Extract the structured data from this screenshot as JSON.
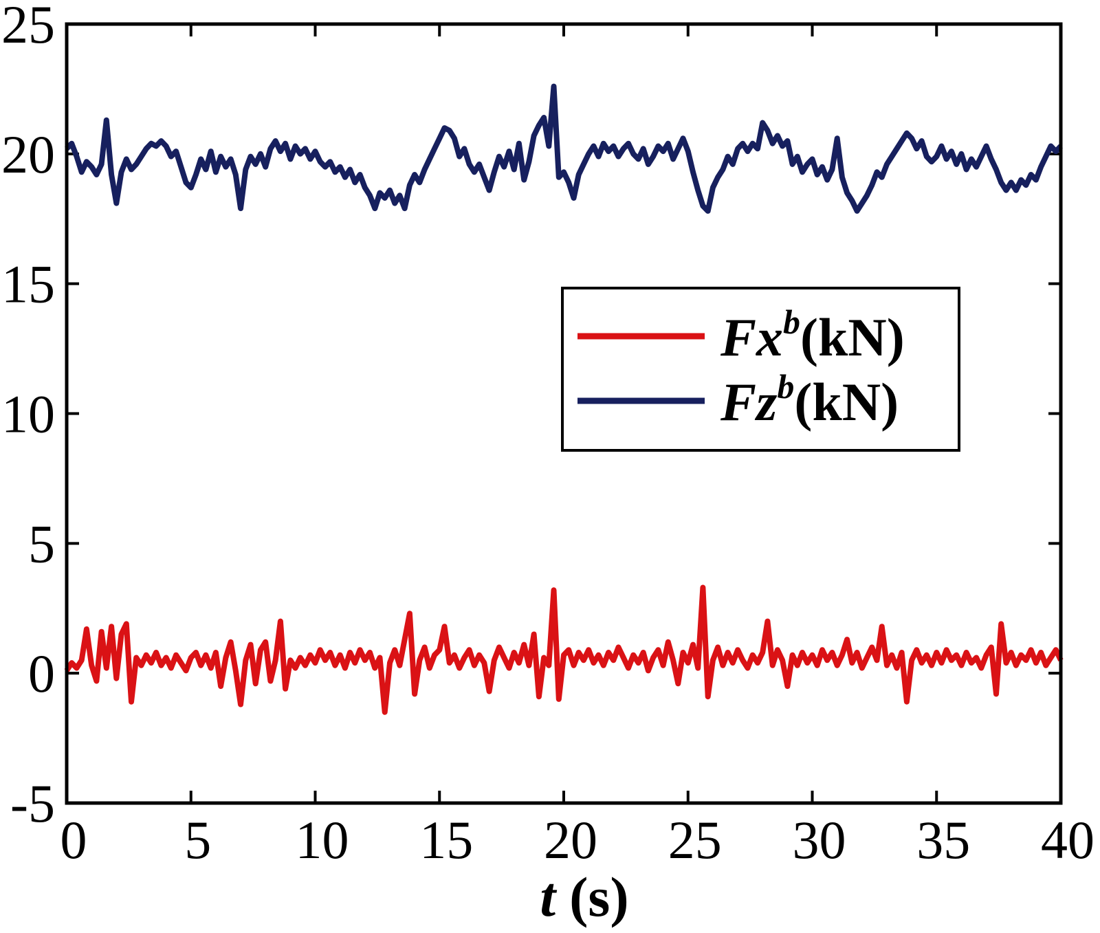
{
  "figure": {
    "background": "#ffffff",
    "axis_color": "#000000",
    "text_color": "#000000"
  },
  "chart_data": {
    "type": "line",
    "title": "",
    "xlabel": {
      "symbol": "t",
      "unit": "(s)"
    },
    "ylabel": "",
    "axes": {
      "xlim": [
        0,
        40
      ],
      "ylim": [
        -5,
        25
      ],
      "xticks": [
        0,
        5,
        10,
        15,
        20,
        25,
        30,
        35,
        40
      ],
      "yticks": [
        -5,
        0,
        5,
        10,
        15,
        20,
        25
      ],
      "tick_direction": "in",
      "box": true,
      "grid": false
    },
    "x_start": 0,
    "x_step": 0.2,
    "legend": {
      "position": "center-right",
      "entries": [
        "Fxᵇ(kN)",
        "Fzᵇ(kN)"
      ]
    },
    "series": [
      {
        "name": "Fx",
        "sup": "b",
        "unit": "(kN)",
        "color": "#da1215",
        "values": [
          0.1,
          0.4,
          0.2,
          0.5,
          1.7,
          0.3,
          -0.3,
          1.6,
          0.2,
          1.8,
          -0.2,
          1.5,
          1.9,
          -1.1,
          0.6,
          0.3,
          0.7,
          0.4,
          0.8,
          0.3,
          0.6,
          0.2,
          0.7,
          0.4,
          0.1,
          0.6,
          0.8,
          0.3,
          0.7,
          0.2,
          0.8,
          -0.5,
          0.6,
          1.2,
          0.1,
          -1.2,
          0.5,
          1.1,
          -0.4,
          0.9,
          1.2,
          -0.3,
          0.5,
          2.0,
          -0.6,
          0.5,
          0.2,
          0.6,
          0.3,
          0.7,
          0.4,
          0.9,
          0.5,
          0.8,
          0.3,
          0.7,
          0.2,
          0.8,
          0.4,
          0.9,
          0.5,
          0.8,
          0.2,
          0.6,
          -1.5,
          0.4,
          0.9,
          0.3,
          1.3,
          2.3,
          -0.8,
          0.5,
          1.0,
          0.2,
          0.7,
          0.9,
          1.8,
          0.4,
          0.7,
          0.2,
          0.6,
          0.9,
          0.3,
          0.7,
          0.4,
          -0.7,
          0.5,
          1.0,
          0.6,
          0.2,
          0.8,
          0.4,
          1.1,
          0.3,
          1.5,
          -0.9,
          0.6,
          0.3,
          3.2,
          -1.0,
          0.7,
          0.9,
          0.3,
          0.8,
          0.5,
          0.9,
          0.4,
          0.7,
          0.3,
          0.8,
          0.5,
          1.0,
          0.6,
          0.2,
          0.7,
          0.4,
          0.8,
          0.1,
          0.6,
          0.9,
          0.3,
          1.2,
          0.5,
          -0.4,
          0.8,
          0.4,
          1.1,
          0.2,
          3.3,
          -0.9,
          0.5,
          1.0,
          0.3,
          0.8,
          0.4,
          0.9,
          0.5,
          0.2,
          0.7,
          0.4,
          0.8,
          2.0,
          0.3,
          0.9,
          0.5,
          -0.5,
          0.7,
          0.3,
          0.8,
          0.4,
          0.7,
          0.3,
          0.9,
          0.5,
          0.8,
          0.3,
          0.7,
          1.3,
          0.4,
          0.8,
          0.2,
          0.6,
          1.0,
          0.5,
          1.8,
          0.3,
          0.7,
          0.2,
          0.8,
          -1.1,
          0.5,
          0.9,
          0.4,
          0.7,
          0.3,
          0.8,
          0.4,
          0.9,
          0.5,
          0.7,
          0.3,
          0.8,
          0.4,
          0.6,
          0.2,
          0.7,
          1.0,
          -0.8,
          1.9,
          0.4,
          0.8,
          0.3,
          0.7,
          0.5,
          0.9,
          0.4,
          0.8,
          0.3,
          0.6,
          0.9,
          0.5
        ]
      },
      {
        "name": "Fz",
        "sup": "b",
        "unit": "(kN)",
        "color": "#17205e",
        "values": [
          20.2,
          20.4,
          19.9,
          19.3,
          19.7,
          19.5,
          19.2,
          19.6,
          21.3,
          19.2,
          18.1,
          19.3,
          19.8,
          19.4,
          19.6,
          19.9,
          20.2,
          20.4,
          20.3,
          20.5,
          20.3,
          19.9,
          20.1,
          19.5,
          18.9,
          18.7,
          19.2,
          19.8,
          19.4,
          20.1,
          19.3,
          19.9,
          19.5,
          19.8,
          19.2,
          17.9,
          19.4,
          19.9,
          19.6,
          20.0,
          19.5,
          20.2,
          20.5,
          20.1,
          20.4,
          19.8,
          20.3,
          20.0,
          20.2,
          19.8,
          20.1,
          19.7,
          19.5,
          19.7,
          19.3,
          19.5,
          19.1,
          19.4,
          18.9,
          19.2,
          18.7,
          18.4,
          17.9,
          18.5,
          18.3,
          18.6,
          18.1,
          18.4,
          17.9,
          18.8,
          19.2,
          18.9,
          19.4,
          19.8,
          20.2,
          20.6,
          21.0,
          20.9,
          20.6,
          19.9,
          20.2,
          19.6,
          19.3,
          19.6,
          19.1,
          18.6,
          19.3,
          19.9,
          19.5,
          20.1,
          19.4,
          20.4,
          19.0,
          19.7,
          20.7,
          21.1,
          21.4,
          20.3,
          22.6,
          19.1,
          19.3,
          18.9,
          18.3,
          19.2,
          19.6,
          20.0,
          20.3,
          19.9,
          20.4,
          20.1,
          20.3,
          19.9,
          20.2,
          20.4,
          20.0,
          19.8,
          20.2,
          19.6,
          19.9,
          20.3,
          20.1,
          20.4,
          19.8,
          20.2,
          20.6,
          20.1,
          19.3,
          18.6,
          18.0,
          17.8,
          18.7,
          19.1,
          19.4,
          19.9,
          19.6,
          20.2,
          20.4,
          20.1,
          20.4,
          20.2,
          21.2,
          20.9,
          20.4,
          20.7,
          20.3,
          20.5,
          19.6,
          19.9,
          19.3,
          19.6,
          19.8,
          19.2,
          19.5,
          19.0,
          19.4,
          20.6,
          19.1,
          18.5,
          18.2,
          17.8,
          18.1,
          18.4,
          18.8,
          19.3,
          19.1,
          19.6,
          19.9,
          20.2,
          20.5,
          20.8,
          20.6,
          20.2,
          20.5,
          19.9,
          19.7,
          19.9,
          20.3,
          19.8,
          20.1,
          19.6,
          20.0,
          19.4,
          19.8,
          19.5,
          19.9,
          20.3,
          19.8,
          19.4,
          18.9,
          18.6,
          18.9,
          18.6,
          19.0,
          18.8,
          19.2,
          19.0,
          19.5,
          19.9,
          20.3,
          20.1,
          20.3
        ]
      }
    ]
  }
}
